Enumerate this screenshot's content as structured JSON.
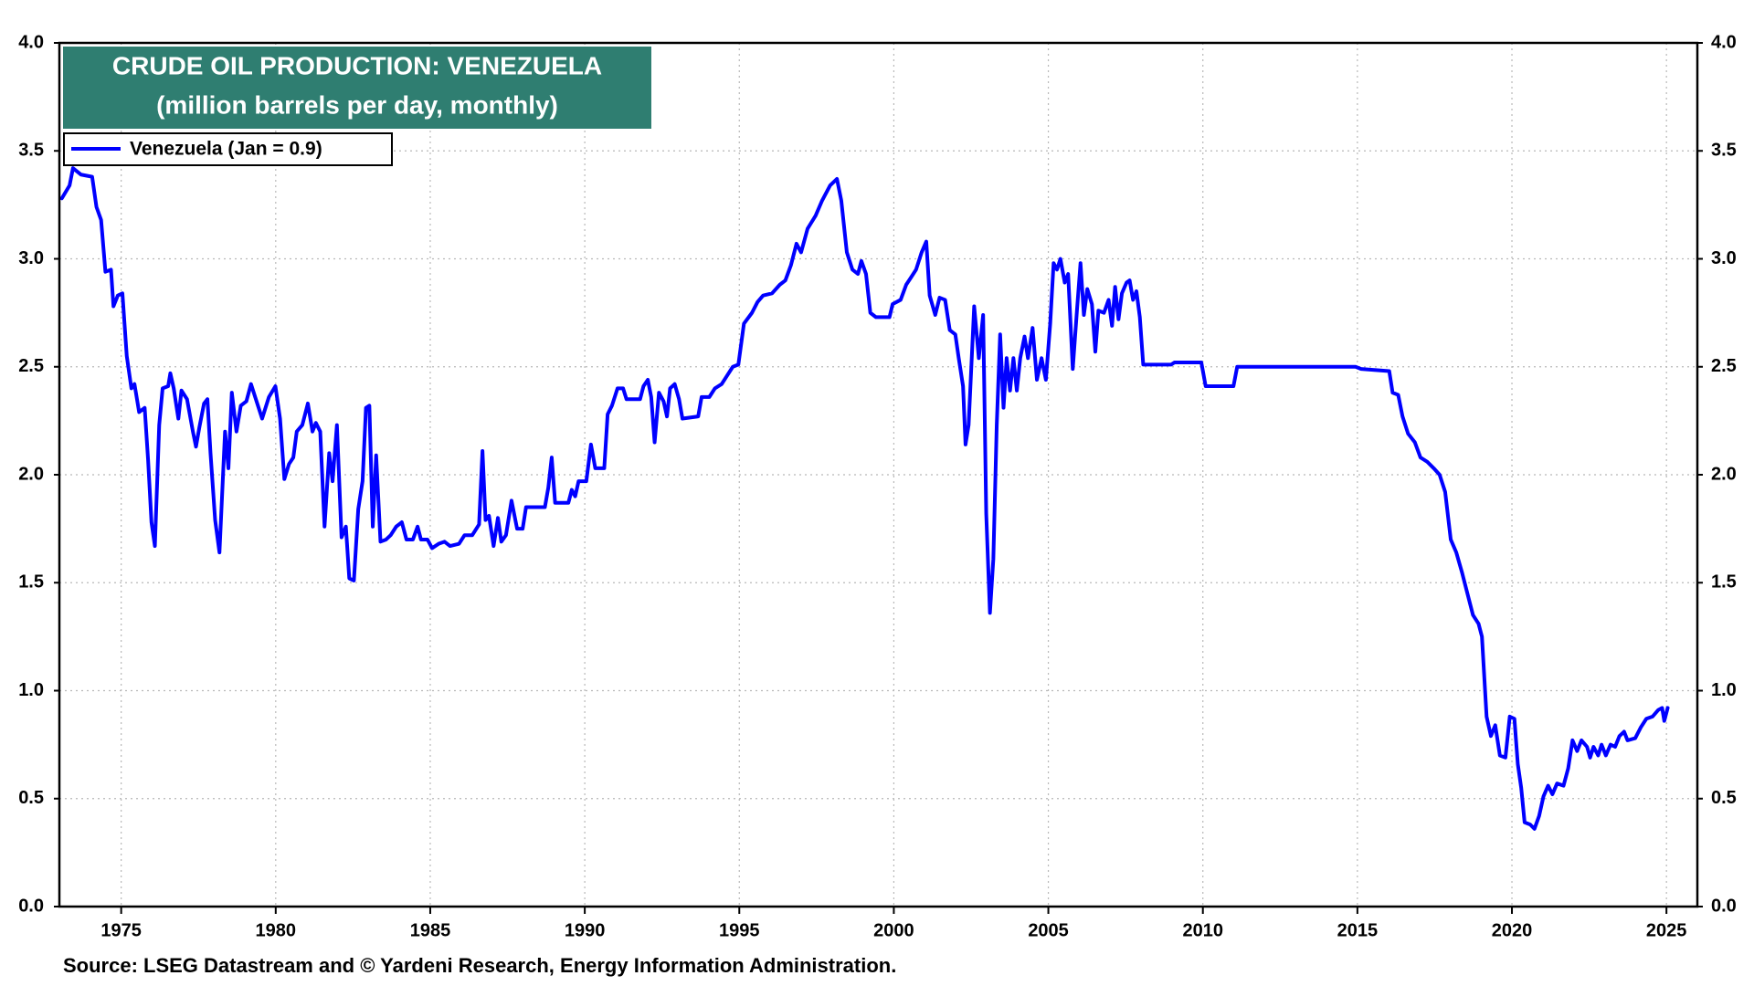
{
  "chart_data": {
    "type": "line",
    "title": "CRUDE OIL PRODUCTION: VENEZUELA",
    "subtitle": "(million barrels per day, monthly)",
    "source": "Source: LSEG Datastream and © Yardeni Research, Energy Information Administration.",
    "xlim": [
      1973,
      2026
    ],
    "xticks": [
      1975,
      1980,
      1985,
      1990,
      1995,
      2000,
      2005,
      2010,
      2015,
      2020,
      2025
    ],
    "ylim": [
      0,
      4
    ],
    "yticks": [
      {
        "value": 0,
        "label": "0.0"
      },
      {
        "value": 0.5,
        "label": "0.5"
      },
      {
        "value": 1,
        "label": "1.0"
      },
      {
        "value": 1.5,
        "label": "1.5"
      },
      {
        "value": 2,
        "label": "2.0"
      },
      {
        "value": 2.5,
        "label": "2.5"
      },
      {
        "value": 3,
        "label": "3.0"
      },
      {
        "value": 3.5,
        "label": "3.5"
      },
      {
        "value": 4,
        "label": "4.0"
      }
    ],
    "grid": true,
    "legend": "upper left",
    "x": [
      1973.08,
      1973.33,
      1973.44,
      1973.7,
      1974.06,
      1974.2,
      1974.35,
      1974.49,
      1974.67,
      1974.75,
      1974.89,
      1975.04,
      1975.18,
      1975.33,
      1975.43,
      1975.58,
      1975.76,
      1975.87,
      1975.98,
      1976.09,
      1976.23,
      1976.34,
      1976.52,
      1976.59,
      1976.7,
      1976.85,
      1976.95,
      1977.13,
      1977.32,
      1977.42,
      1977.53,
      1977.68,
      1977.79,
      1977.89,
      1978.04,
      1978.18,
      1978.36,
      1978.47,
      1978.58,
      1978.73,
      1978.87,
      1979.05,
      1979.2,
      1979.38,
      1979.56,
      1979.78,
      1979.99,
      1980.14,
      1980.28,
      1980.43,
      1980.57,
      1980.68,
      1980.86,
      1981.04,
      1981.19,
      1981.3,
      1981.44,
      1981.58,
      1981.73,
      1981.84,
      1981.98,
      1982.13,
      1982.27,
      1982.38,
      1982.53,
      1982.67,
      1982.81,
      1982.92,
      1983.03,
      1983.14,
      1983.25,
      1983.39,
      1983.57,
      1983.72,
      1983.9,
      1984.08,
      1984.23,
      1984.44,
      1984.59,
      1984.7,
      1984.91,
      1985.06,
      1985.27,
      1985.46,
      1985.64,
      1985.93,
      1986.11,
      1986.36,
      1986.58,
      1986.69,
      1986.79,
      1986.9,
      1987.05,
      1987.19,
      1987.3,
      1987.45,
      1987.63,
      1987.81,
      1987.99,
      1988.1,
      1988.71,
      1988.82,
      1988.93,
      1989.04,
      1989.47,
      1989.58,
      1989.69,
      1989.8,
      1990.05,
      1990.2,
      1990.34,
      1990.63,
      1990.74,
      1990.88,
      1991.06,
      1991.24,
      1991.35,
      1991.79,
      1991.9,
      1992.04,
      1992.15,
      1992.26,
      1992.4,
      1992.55,
      1992.66,
      1992.76,
      1992.91,
      1993.05,
      1993.16,
      1993.67,
      1993.78,
      1994.03,
      1994.21,
      1994.43,
      1994.61,
      1994.79,
      1994.97,
      1995.15,
      1995.41,
      1995.59,
      1995.77,
      1996.06,
      1996.31,
      1996.49,
      1996.67,
      1996.85,
      1997.0,
      1997.21,
      1997.47,
      1997.68,
      1997.94,
      1998.16,
      1998.3,
      1998.48,
      1998.66,
      1998.84,
      1998.95,
      1999.1,
      1999.24,
      1999.42,
      1999.86,
      1999.96,
      2000.22,
      2000.4,
      2000.54,
      2000.72,
      2000.9,
      2001.05,
      2001.16,
      2001.34,
      2001.48,
      2001.66,
      2001.81,
      2001.99,
      2002.1,
      2002.24,
      2002.32,
      2002.42,
      2002.6,
      2002.75,
      2002.89,
      2002.99,
      2003.11,
      2003.22,
      2003.33,
      2003.44,
      2003.55,
      2003.65,
      2003.76,
      2003.87,
      2003.98,
      2004.09,
      2004.23,
      2004.34,
      2004.49,
      2004.63,
      2004.78,
      2004.92,
      2005.06,
      2005.17,
      2005.28,
      2005.39,
      2005.53,
      2005.64,
      2005.79,
      2005.93,
      2006.04,
      2006.15,
      2006.26,
      2006.41,
      2006.52,
      2006.62,
      2006.8,
      2006.95,
      2007.06,
      2007.16,
      2007.27,
      2007.38,
      2007.53,
      2007.63,
      2007.74,
      2007.85,
      2007.96,
      2008.07,
      2008.97,
      2009.08,
      2009.95,
      2010.09,
      2010.99,
      2011.11,
      2014.94,
      2015.12,
      2016.03,
      2016.14,
      2016.32,
      2016.46,
      2016.64,
      2016.86,
      2017.04,
      2017.26,
      2017.47,
      2017.66,
      2017.84,
      2018.02,
      2018.2,
      2018.38,
      2018.56,
      2018.74,
      2018.92,
      2019.03,
      2019.18,
      2019.32,
      2019.46,
      2019.61,
      2019.79,
      2019.93,
      2020.08,
      2020.19,
      2020.3,
      2020.41,
      2020.59,
      2020.73,
      2020.88,
      2021.02,
      2021.17,
      2021.31,
      2021.46,
      2021.67,
      2021.82,
      2021.96,
      2022.11,
      2022.25,
      2022.43,
      2022.53,
      2022.64,
      2022.79,
      2022.9,
      2023.04,
      2023.19,
      2023.34,
      2023.48,
      2023.63,
      2023.74,
      2023.99,
      2024.17,
      2024.35,
      2024.55,
      2024.73,
      2024.86,
      2024.93,
      2025.04
    ],
    "series": [
      {
        "name": "Venezuela (Jan = 0.9)",
        "color": "#0000ff",
        "values": [
          3.28,
          3.34,
          3.42,
          3.39,
          3.38,
          3.24,
          3.18,
          2.94,
          2.95,
          2.78,
          2.83,
          2.84,
          2.55,
          2.4,
          2.42,
          2.29,
          2.31,
          2.07,
          1.78,
          1.67,
          2.23,
          2.4,
          2.41,
          2.47,
          2.4,
          2.26,
          2.39,
          2.35,
          2.2,
          2.13,
          2.22,
          2.33,
          2.35,
          2.1,
          1.79,
          1.64,
          2.2,
          2.03,
          2.38,
          2.2,
          2.32,
          2.34,
          2.42,
          2.34,
          2.26,
          2.36,
          2.41,
          2.26,
          1.98,
          2.05,
          2.08,
          2.2,
          2.23,
          2.33,
          2.2,
          2.24,
          2.2,
          1.76,
          2.1,
          1.97,
          2.23,
          1.71,
          1.76,
          1.52,
          1.51,
          1.84,
          1.97,
          2.31,
          2.32,
          1.76,
          2.09,
          1.69,
          1.7,
          1.72,
          1.76,
          1.78,
          1.7,
          1.7,
          1.76,
          1.7,
          1.7,
          1.66,
          1.68,
          1.69,
          1.67,
          1.68,
          1.72,
          1.72,
          1.77,
          2.11,
          1.79,
          1.81,
          1.67,
          1.8,
          1.69,
          1.72,
          1.88,
          1.75,
          1.75,
          1.85,
          1.85,
          1.94,
          2.08,
          1.87,
          1.87,
          1.93,
          1.9,
          1.97,
          1.97,
          2.14,
          2.03,
          2.03,
          2.28,
          2.32,
          2.4,
          2.4,
          2.35,
          2.35,
          2.41,
          2.44,
          2.36,
          2.15,
          2.38,
          2.34,
          2.27,
          2.4,
          2.42,
          2.35,
          2.26,
          2.27,
          2.36,
          2.36,
          2.4,
          2.42,
          2.46,
          2.5,
          2.51,
          2.7,
          2.75,
          2.8,
          2.83,
          2.84,
          2.88,
          2.9,
          2.97,
          3.07,
          3.03,
          3.14,
          3.2,
          3.27,
          3.34,
          3.37,
          3.27,
          3.03,
          2.95,
          2.93,
          2.99,
          2.93,
          2.75,
          2.73,
          2.73,
          2.79,
          2.81,
          2.88,
          2.91,
          2.95,
          3.03,
          3.08,
          2.83,
          2.74,
          2.82,
          2.81,
          2.67,
          2.65,
          2.54,
          2.41,
          2.14,
          2.23,
          2.78,
          2.54,
          2.74,
          1.82,
          1.36,
          1.61,
          2.23,
          2.65,
          2.31,
          2.54,
          2.39,
          2.54,
          2.39,
          2.54,
          2.64,
          2.54,
          2.68,
          2.44,
          2.54,
          2.44,
          2.7,
          2.98,
          2.95,
          3.0,
          2.89,
          2.93,
          2.49,
          2.77,
          2.98,
          2.74,
          2.86,
          2.79,
          2.57,
          2.76,
          2.75,
          2.81,
          2.69,
          2.87,
          2.72,
          2.84,
          2.89,
          2.9,
          2.81,
          2.85,
          2.73,
          2.51,
          2.51,
          2.52,
          2.52,
          2.41,
          2.41,
          2.5,
          2.5,
          2.49,
          2.48,
          2.38,
          2.37,
          2.27,
          2.19,
          2.15,
          2.08,
          2.06,
          2.03,
          2.0,
          1.92,
          1.7,
          1.64,
          1.55,
          1.45,
          1.35,
          1.31,
          1.25,
          0.88,
          0.79,
          0.84,
          0.7,
          0.69,
          0.88,
          0.87,
          0.66,
          0.55,
          0.39,
          0.38,
          0.36,
          0.42,
          0.51,
          0.56,
          0.52,
          0.57,
          0.56,
          0.64,
          0.77,
          0.72,
          0.77,
          0.74,
          0.69,
          0.74,
          0.7,
          0.75,
          0.7,
          0.75,
          0.74,
          0.79,
          0.81,
          0.77,
          0.78,
          0.83,
          0.87,
          0.88,
          0.91,
          0.92,
          0.86,
          0.92
        ]
      }
    ]
  }
}
